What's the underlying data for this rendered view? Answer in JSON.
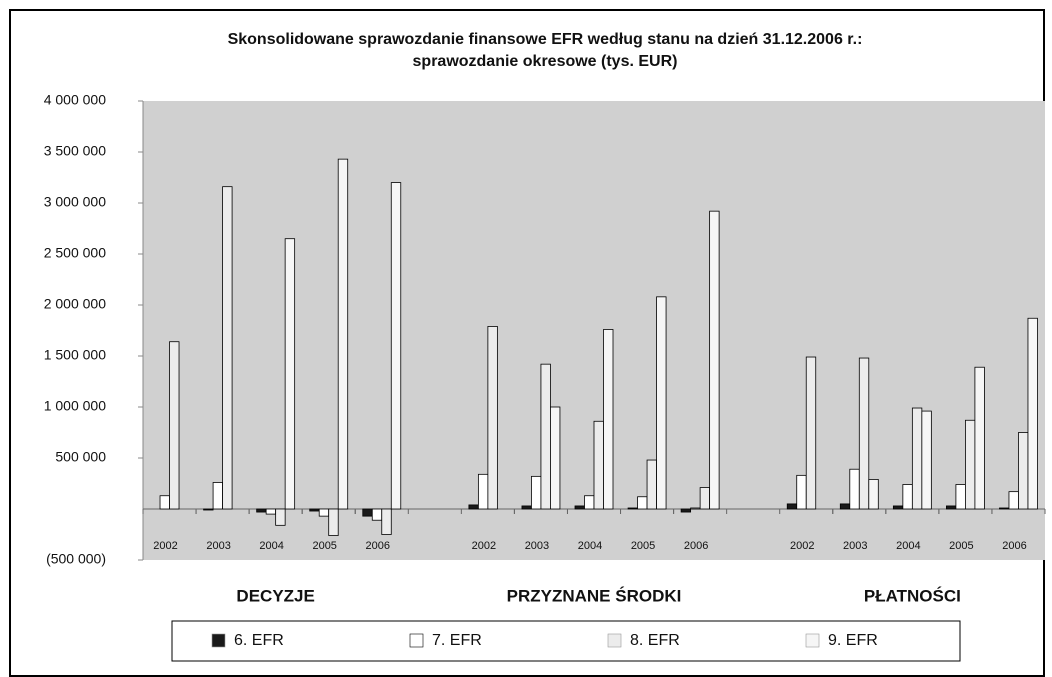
{
  "chart_data": {
    "type": "bar",
    "title": "Skonsolidowane sprawozdanie finansowe EFR według stanu na dzień 31.12.2006 r.:",
    "subtitle": "sprawozdanie okresowe (tys. EUR)",
    "categories": [
      "2002",
      "2003",
      "2004",
      "2005",
      "2006",
      null,
      "2002",
      "2003",
      "2004",
      "2005",
      "2006",
      null,
      "2002",
      "2003",
      "2004",
      "2005",
      "2006"
    ],
    "groups": [
      "DECYZJE",
      "PRZYZNANE ŚRODKI",
      "PŁATNOŚCI"
    ],
    "series": [
      {
        "name": "6. EFR",
        "color": "#1a1a1a",
        "values": [
          0,
          -10000,
          -30000,
          -20000,
          -70000,
          null,
          40000,
          30000,
          30000,
          10000,
          -30000,
          null,
          50000,
          50000,
          30000,
          30000,
          10000
        ]
      },
      {
        "name": "7. EFR",
        "color": "#ffffff",
        "values": [
          130000,
          260000,
          -50000,
          -70000,
          -110000,
          null,
          340000,
          320000,
          130000,
          120000,
          10000,
          null,
          330000,
          390000,
          240000,
          240000,
          170000
        ]
      },
      {
        "name": "8. EFR",
        "color": "#ececec",
        "values": [
          1640000,
          3160000,
          -160000,
          -260000,
          -250000,
          null,
          1790000,
          1420000,
          860000,
          480000,
          210000,
          null,
          1490000,
          1480000,
          990000,
          870000,
          750000
        ]
      },
      {
        "name": "9. EFR",
        "color": "#f6f6f6",
        "values": [
          0,
          0,
          2650000,
          3430000,
          3200000,
          null,
          0,
          1000000,
          1760000,
          2080000,
          2920000,
          null,
          0,
          290000,
          960000,
          1390000,
          1870000
        ]
      }
    ],
    "ylim": [
      -500000,
      4000000
    ],
    "yticks": [
      {
        "value": -500000,
        "label": "(500 000)"
      },
      {
        "value": 500000,
        "label": "500 000"
      },
      {
        "value": 1000000,
        "label": "1 000 000"
      },
      {
        "value": 1500000,
        "label": "1 500 000"
      },
      {
        "value": 2000000,
        "label": "2 000 000"
      },
      {
        "value": 2500000,
        "label": "2 500 000"
      },
      {
        "value": 3000000,
        "label": "3 000 000"
      },
      {
        "value": 3500000,
        "label": "3 500 000"
      },
      {
        "value": 4000000,
        "label": "4 000 000"
      }
    ],
    "grid": false
  }
}
